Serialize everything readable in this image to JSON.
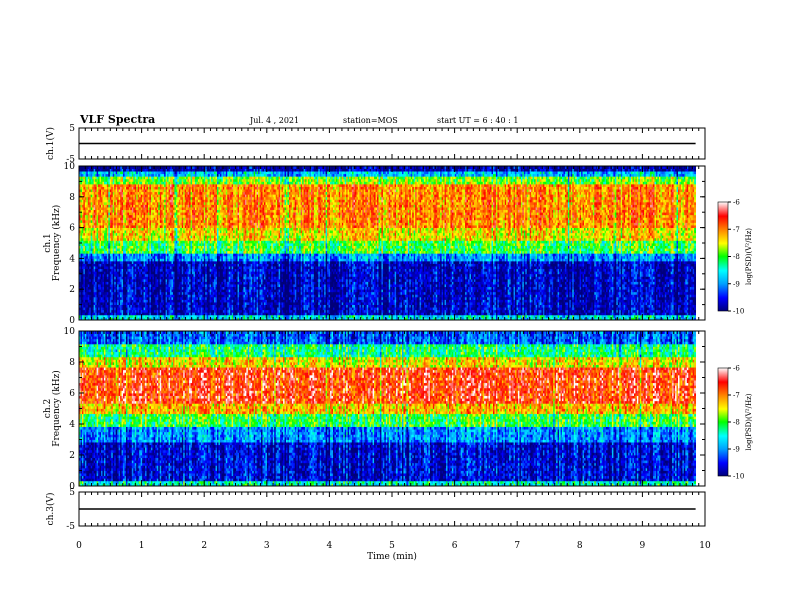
{
  "header": {
    "title": "VLF Spectra",
    "date": "Jul. 4 , 2021",
    "station": "station=MOS",
    "start": "start UT = 6 : 40 : 1"
  },
  "colors": {
    "spectrum_ramp": [
      "#00007a",
      "#0000ff",
      "#00a0ff",
      "#00ffff",
      "#00ff00",
      "#ffff00",
      "#ff8000",
      "#ff0000",
      "#ffffff"
    ]
  },
  "chart_data": [
    {
      "type": "line",
      "panel": "ch1-waveform",
      "ylabel": "ch.1(V)",
      "ylim": [
        -5,
        5
      ],
      "yticks": [
        "5",
        "-5"
      ],
      "series": [
        {
          "x": [
            0,
            9.85
          ],
          "y": [
            0,
            0
          ]
        }
      ]
    },
    {
      "type": "heatmap",
      "panel": "ch1-spectrogram",
      "ylabel": "ch.1 Frequency (kHz)",
      "xlim": [
        0,
        10
      ],
      "ylim": [
        0,
        10
      ],
      "yticks": [
        "0",
        "2",
        "4",
        "6",
        "8",
        "10"
      ],
      "data_end_min": 9.85,
      "bands_khz_log_psd": [
        {
          "from": 0,
          "to": 0.4,
          "level": -8.6
        },
        {
          "from": 0.4,
          "to": 3.8,
          "level": -9.7
        },
        {
          "from": 3.8,
          "to": 4.4,
          "level": -9.0
        },
        {
          "from": 4.4,
          "to": 5.2,
          "level": -8.0
        },
        {
          "from": 5.2,
          "to": 6.0,
          "level": -7.4
        },
        {
          "from": 6.0,
          "to": 8.8,
          "level": -7.0
        },
        {
          "from": 8.8,
          "to": 9.3,
          "level": -7.8
        },
        {
          "from": 9.3,
          "to": 9.7,
          "level": -8.8
        },
        {
          "from": 9.7,
          "to": 10,
          "level": -9.8
        }
      ],
      "colorbar": {
        "label": "log(PSD)(V²/Hz)",
        "range": [
          -10,
          -6
        ],
        "ticks": [
          "-6",
          "-7",
          "-8",
          "-9",
          "-10"
        ]
      }
    },
    {
      "type": "heatmap",
      "panel": "ch2-spectrogram",
      "ylabel": "ch.2 Frequency (kHz)",
      "xlim": [
        0,
        10
      ],
      "ylim": [
        0,
        10
      ],
      "yticks": [
        "0",
        "2",
        "4",
        "6",
        "8",
        "10"
      ],
      "data_end_min": 9.85,
      "bands_khz_log_psd": [
        {
          "from": 0,
          "to": 0.4,
          "level": -8.4
        },
        {
          "from": 0.4,
          "to": 2.8,
          "level": -9.6
        },
        {
          "from": 2.8,
          "to": 3.8,
          "level": -9.0
        },
        {
          "from": 3.8,
          "to": 4.6,
          "level": -8.0
        },
        {
          "from": 4.6,
          "to": 5.4,
          "level": -7.2
        },
        {
          "from": 5.4,
          "to": 7.6,
          "level": -6.6
        },
        {
          "from": 7.6,
          "to": 8.4,
          "level": -7.4
        },
        {
          "from": 8.4,
          "to": 9.2,
          "level": -8.2
        },
        {
          "from": 9.2,
          "to": 10,
          "level": -9.2
        }
      ],
      "colorbar": {
        "label": "log(PSD)(V²/Hz)",
        "range": [
          -10,
          -6
        ],
        "ticks": [
          "-6",
          "-7",
          "-8",
          "-9",
          "-10"
        ]
      }
    },
    {
      "type": "line",
      "panel": "ch3-waveform",
      "ylabel": "ch.3(V)",
      "ylim": [
        -5,
        5
      ],
      "yticks": [
        "5",
        "-5"
      ],
      "series": [
        {
          "x": [
            0,
            9.85
          ],
          "y": [
            0,
            0
          ]
        }
      ]
    }
  ],
  "xaxis": {
    "label": "Time (min)",
    "range": [
      0,
      10
    ],
    "ticks": [
      "0",
      "1",
      "2",
      "3",
      "4",
      "5",
      "6",
      "7",
      "8",
      "9",
      "10"
    ]
  }
}
